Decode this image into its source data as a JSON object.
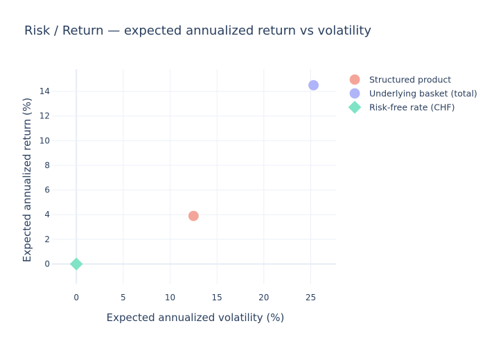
{
  "chart_data": {
    "type": "scatter",
    "title": "Risk / Return — expected annualized return vs volatility",
    "xlabel": "Expected annualized volatility (%)",
    "ylabel": "Expected annualized return (%)",
    "xlim": [
      -2.6,
      27.7
    ],
    "ylim": [
      -1.6,
      15.8
    ],
    "x_ticks": [
      0,
      5,
      10,
      15,
      20,
      25
    ],
    "y_ticks": [
      0,
      2,
      4,
      6,
      8,
      10,
      12,
      14
    ],
    "grid": true,
    "legend_position": "top-right, outside plot",
    "series": [
      {
        "name": "Structured product",
        "marker": "circle",
        "color": "#f4a59a",
        "points": [
          {
            "x": 12.5,
            "y": 3.9
          }
        ]
      },
      {
        "name": "Underlying basket (total)",
        "marker": "circle",
        "color": "#b0b4f9",
        "points": [
          {
            "x": 25.3,
            "y": 14.5
          }
        ]
      },
      {
        "name": "Risk-free rate (CHF)",
        "marker": "diamond",
        "color": "#7fe3c5",
        "points": [
          {
            "x": 0,
            "y": 0
          }
        ]
      }
    ]
  }
}
